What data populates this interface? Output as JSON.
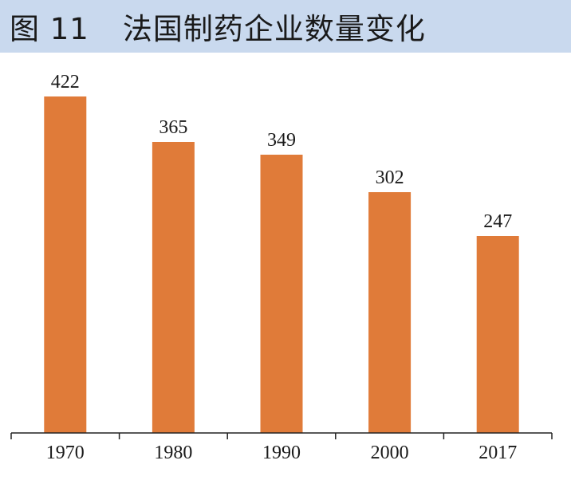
{
  "title": {
    "figure_number": "图 11",
    "text": "法国制药企业数量变化"
  },
  "colors": {
    "bar": "#e07b39",
    "title_background": "#c9d9ee",
    "axis": "#222222"
  },
  "chart_data": {
    "type": "bar",
    "categories": [
      "1970",
      "1980",
      "1990",
      "2000",
      "2017"
    ],
    "values": [
      422,
      365,
      349,
      302,
      247
    ],
    "data_labels": [
      "422",
      "365",
      "349",
      "302",
      "247"
    ],
    "title": "法国制药企业数量变化",
    "xlabel": "",
    "ylabel": "",
    "ylim": [
      0,
      422
    ],
    "grid": false,
    "legend": "none"
  }
}
